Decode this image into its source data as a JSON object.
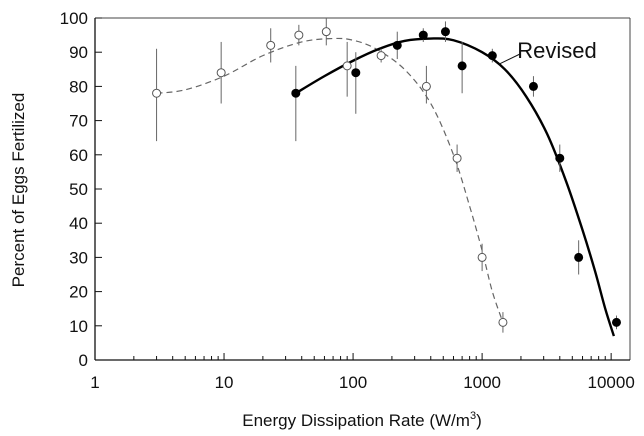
{
  "chart_data": {
    "type": "scatter",
    "xlabel": "Energy Dissipation Rate (W/m",
    "xlabel_sup": "3",
    "xlabel_close": ")",
    "ylabel": "Percent of Eggs Fertilized",
    "xscale": "log",
    "xlim": [
      1,
      14000
    ],
    "ylim": [
      0,
      100
    ],
    "x_tick_labels": [
      "1",
      "10",
      "100",
      "1000",
      "10000"
    ],
    "x_tick_values": [
      1,
      10,
      100,
      1000,
      10000
    ],
    "y_tick_labels": [
      "0",
      "10",
      "20",
      "30",
      "40",
      "50",
      "60",
      "70",
      "80",
      "90",
      "100"
    ],
    "y_tick_values": [
      0,
      10,
      20,
      30,
      40,
      50,
      60,
      70,
      80,
      90,
      100
    ],
    "annotations": [
      {
        "text": "Revised",
        "series": "filled"
      }
    ],
    "series": [
      {
        "marker": "open-circle",
        "line_style": "dashed",
        "points": [
          {
            "x": 3,
            "y": 78,
            "lo": 64,
            "hi": 91
          },
          {
            "x": 9.5,
            "y": 84,
            "lo": 75,
            "hi": 93
          },
          {
            "x": 23,
            "y": 92,
            "lo": 87,
            "hi": 97
          },
          {
            "x": 38,
            "y": 95,
            "lo": 92,
            "hi": 98
          },
          {
            "x": 62,
            "y": 96,
            "lo": 92,
            "hi": 100
          },
          {
            "x": 90,
            "y": 86,
            "lo": 77,
            "hi": 93
          },
          {
            "x": 165,
            "y": 89,
            "lo": 87,
            "hi": 91
          },
          {
            "x": 370,
            "y": 80,
            "lo": 75,
            "hi": 86
          },
          {
            "x": 640,
            "y": 59,
            "lo": 55,
            "hi": 63
          },
          {
            "x": 1000,
            "y": 30,
            "lo": 26,
            "hi": 34
          },
          {
            "x": 1450,
            "y": 11,
            "lo": 8,
            "hi": 14
          }
        ],
        "fit": [
          {
            "x": 3,
            "y": 78
          },
          {
            "x": 5,
            "y": 79
          },
          {
            "x": 10,
            "y": 83
          },
          {
            "x": 20,
            "y": 89
          },
          {
            "x": 40,
            "y": 93
          },
          {
            "x": 70,
            "y": 94
          },
          {
            "x": 100,
            "y": 93.5
          },
          {
            "x": 150,
            "y": 91
          },
          {
            "x": 250,
            "y": 85
          },
          {
            "x": 400,
            "y": 75
          },
          {
            "x": 600,
            "y": 60
          },
          {
            "x": 800,
            "y": 45
          },
          {
            "x": 1000,
            "y": 32
          },
          {
            "x": 1200,
            "y": 20
          },
          {
            "x": 1450,
            "y": 11
          }
        ]
      },
      {
        "marker": "filled-circle",
        "line_style": "solid",
        "points": [
          {
            "x": 36,
            "y": 78,
            "lo": 64,
            "hi": 86
          },
          {
            "x": 105,
            "y": 84,
            "lo": 72,
            "hi": 90
          },
          {
            "x": 220,
            "y": 92,
            "lo": 88,
            "hi": 96
          },
          {
            "x": 350,
            "y": 95,
            "lo": 93,
            "hi": 97
          },
          {
            "x": 520,
            "y": 96,
            "lo": 93,
            "hi": 99
          },
          {
            "x": 700,
            "y": 86,
            "lo": 78,
            "hi": 93
          },
          {
            "x": 1200,
            "y": 89,
            "lo": 87,
            "hi": 91
          },
          {
            "x": 2500,
            "y": 80,
            "lo": 77,
            "hi": 83
          },
          {
            "x": 4000,
            "y": 59,
            "lo": 55,
            "hi": 63
          },
          {
            "x": 5600,
            "y": 30,
            "lo": 25,
            "hi": 35
          },
          {
            "x": 11000,
            "y": 11,
            "lo": 9,
            "hi": 13
          }
        ],
        "fit": [
          {
            "x": 36,
            "y": 78
          },
          {
            "x": 60,
            "y": 83
          },
          {
            "x": 100,
            "y": 87.5
          },
          {
            "x": 160,
            "y": 91
          },
          {
            "x": 250,
            "y": 93.3
          },
          {
            "x": 400,
            "y": 94
          },
          {
            "x": 600,
            "y": 93.5
          },
          {
            "x": 1000,
            "y": 90
          },
          {
            "x": 1500,
            "y": 85
          },
          {
            "x": 2200,
            "y": 77
          },
          {
            "x": 3200,
            "y": 66
          },
          {
            "x": 4500,
            "y": 52
          },
          {
            "x": 6000,
            "y": 38
          },
          {
            "x": 7500,
            "y": 26
          },
          {
            "x": 9000,
            "y": 15
          },
          {
            "x": 10500,
            "y": 7
          }
        ]
      }
    ]
  }
}
